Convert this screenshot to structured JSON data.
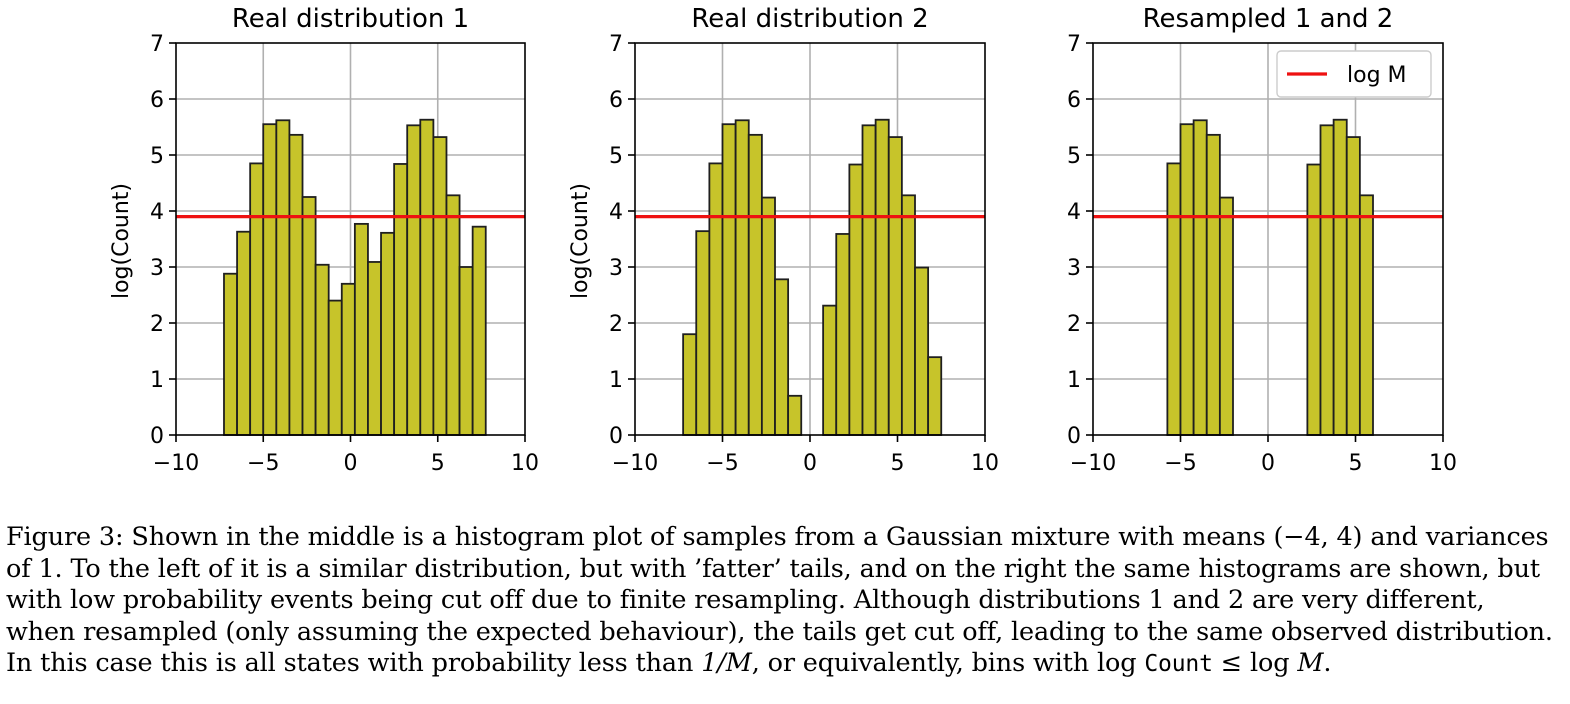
{
  "colors": {
    "bar_fill": "#c7c42a",
    "bar_edge": "#1f1f1f",
    "threshold_line": "#ee1111",
    "grid": "#b0b0b0"
  },
  "chart_data": [
    {
      "type": "bar",
      "title": "Real distribution 1",
      "xlabel": "",
      "ylabel": "log(Count)",
      "xlim": [
        -10,
        10
      ],
      "ylim": [
        0,
        7
      ],
      "xticks": [
        "−10",
        "−5",
        "0",
        "5",
        "10"
      ],
      "yticks": [
        "0",
        "1",
        "2",
        "3",
        "4",
        "5",
        "6",
        "7"
      ],
      "grid": true,
      "bin_width": 0.75,
      "bin_lefts": [
        -7.25,
        -6.5,
        -5.75,
        -5.0,
        -4.25,
        -3.5,
        -2.75,
        -2.0,
        -1.25,
        -0.5,
        0.25,
        1.0,
        1.75,
        2.5,
        3.25,
        4.0,
        4.75,
        5.5,
        6.25,
        7.0
      ],
      "values": [
        2.88,
        3.63,
        4.85,
        5.55,
        5.62,
        5.36,
        4.25,
        3.04,
        2.4,
        2.7,
        3.77,
        3.09,
        3.61,
        4.84,
        5.53,
        5.63,
        5.32,
        4.28,
        3.0,
        3.72
      ],
      "hline": 3.9,
      "legend": null
    },
    {
      "type": "bar",
      "title": "Real distribution 2",
      "xlabel": "",
      "ylabel": "log(Count)",
      "xlim": [
        -10,
        10
      ],
      "ylim": [
        0,
        7
      ],
      "xticks": [
        "−10",
        "−5",
        "0",
        "5",
        "10"
      ],
      "yticks": [
        "0",
        "1",
        "2",
        "3",
        "4",
        "5",
        "6",
        "7"
      ],
      "grid": true,
      "bin_width": 0.75,
      "bin_lefts": [
        -7.25,
        -6.5,
        -5.75,
        -5.0,
        -4.25,
        -3.5,
        -2.75,
        -2.0,
        -1.25,
        0.75,
        1.5,
        2.25,
        3.0,
        3.75,
        4.5,
        5.25,
        6.0,
        6.75
      ],
      "values": [
        1.8,
        3.64,
        4.85,
        5.55,
        5.62,
        5.36,
        4.24,
        2.78,
        0.7,
        2.31,
        3.59,
        4.83,
        5.53,
        5.63,
        5.32,
        4.28,
        2.99,
        1.39
      ],
      "hline": 3.9,
      "legend": null
    },
    {
      "type": "bar",
      "title": "Resampled 1 and 2",
      "xlabel": "",
      "ylabel": "",
      "xlim": [
        -10,
        10
      ],
      "ylim": [
        0,
        7
      ],
      "xticks": [
        "−10",
        "−5",
        "0",
        "5",
        "10"
      ],
      "yticks": [
        "0",
        "1",
        "2",
        "3",
        "4",
        "5",
        "6",
        "7"
      ],
      "grid": true,
      "bin_width": 0.75,
      "bin_lefts": [
        -5.75,
        -5.0,
        -4.25,
        -3.5,
        -2.75,
        2.25,
        3.0,
        3.75,
        4.5,
        5.25
      ],
      "values": [
        4.85,
        5.55,
        5.62,
        5.36,
        4.24,
        4.83,
        5.53,
        5.63,
        5.32,
        4.28
      ],
      "hline": 3.9,
      "legend": {
        "label": "log M",
        "placement": "top-right"
      }
    }
  ],
  "caption": {
    "line1_a": "Figure 3: Shown in the middle is a histogram plot of samples from a Gaussian mixture with means ",
    "line1_math": "(−4, 4)",
    "line1_b": " and variances",
    "line2_a": "of ",
    "line2_math": "1",
    "line2_b": ". To the left of it is a similar distribution, but with ’fatter’ tails, and on the right the same histograms are shown, but",
    "line3": "with low probability events being cut off due to finite resampling. Although distributions 1 and 2 are very different,",
    "line4": "when resampled (only assuming the expected behaviour), the tails get cut off, leading to the same observed distribution.",
    "line5_a": "In this case this is all states with probability less than ",
    "line5_math1": "1/M",
    "line5_b": ", or equivalently, bins with ",
    "line5_log1": "log",
    "line5_code": "Count",
    "line5_leq": " ≤ ",
    "line5_log2": "log",
    "line5_M": "M",
    "line5_end": "."
  }
}
